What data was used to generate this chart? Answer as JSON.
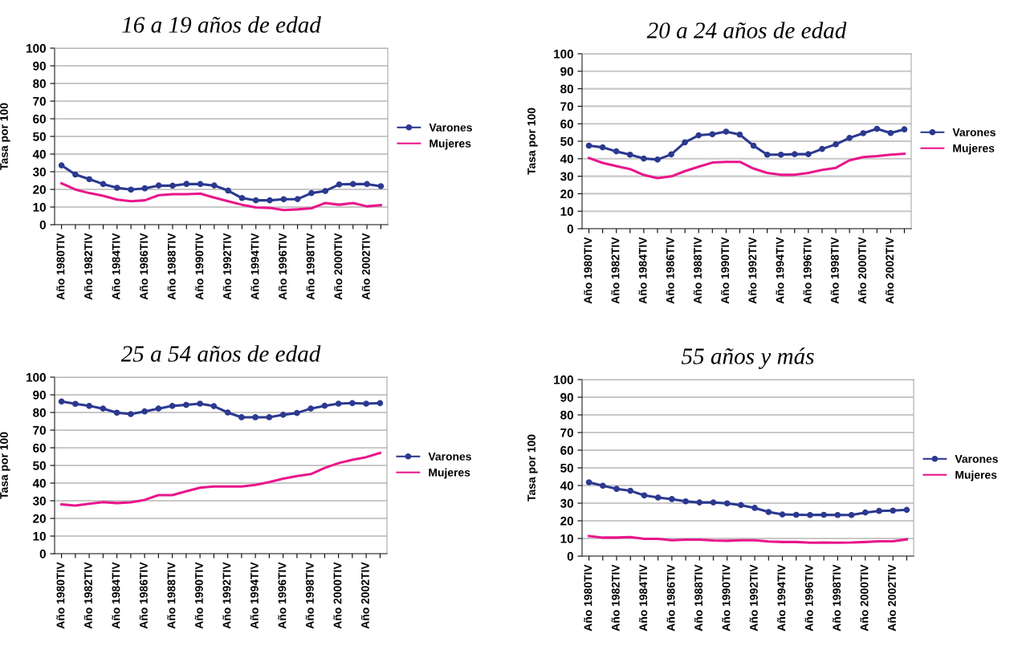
{
  "chart_data": [
    {
      "type": "line",
      "title": "16 a 19 años de edad",
      "ylabel": "Tasa por 100",
      "categories": [
        "Año 1980TIV",
        null,
        "Año 1982TIV",
        null,
        "Año 1984TIV",
        null,
        "Año 1986TIV",
        null,
        "Año 1988TIV",
        null,
        "Año 1990TIV",
        null,
        "Año 1992TIV",
        null,
        "Año 1994TIV",
        null,
        "Año 1996TIV",
        null,
        "Año 1998TIV",
        null,
        "Año 2000TIV",
        null,
        "Año 2002TIV",
        null
      ],
      "series": [
        {
          "name": "Varones",
          "color": "#2b3990",
          "marker": "circle",
          "values": [
            33.6,
            28.4,
            25.8,
            23.0,
            20.9,
            19.9,
            20.6,
            22.2,
            22.1,
            23.1,
            23.0,
            22.2,
            19.3,
            15.1,
            13.8,
            13.8,
            14.4,
            14.5,
            17.9,
            19.1,
            22.8,
            23.0,
            23.0,
            21.8
          ]
        },
        {
          "name": "Mujeres",
          "color": "#e8168c",
          "marker": "none",
          "values": [
            23.4,
            19.9,
            17.9,
            16.4,
            14.2,
            13.3,
            13.8,
            16.7,
            17.3,
            17.3,
            17.6,
            15.3,
            13.3,
            11.3,
            9.8,
            9.5,
            8.3,
            8.7,
            9.3,
            12.3,
            11.3,
            12.3,
            10.4,
            11.1
          ]
        }
      ],
      "ylim": [
        0,
        100
      ],
      "yticks": [
        0,
        10,
        20,
        30,
        40,
        50,
        60,
        70,
        80,
        90,
        100
      ],
      "grid": "y",
      "legend": "right",
      "line_style": "solid"
    },
    {
      "type": "line",
      "title": "20 a 24 años de edad",
      "ylabel": "Tasa por 100",
      "categories": [
        "Año 1980TIV",
        null,
        "Año 1982TIV",
        null,
        "Año 1984TIV",
        null,
        "Año 1986TIV",
        null,
        "Año 1988TIV",
        null,
        "Año 1990TIV",
        null,
        "Año 1992TIV",
        null,
        "Año 1994TIV",
        null,
        "Año 1996TIV",
        null,
        "Año 1998TIV",
        null,
        "Año 2000TIV",
        null,
        "Año 2002TIV",
        null
      ],
      "series": [
        {
          "name": "Varones",
          "color": "#2b3990",
          "marker": "circle",
          "values": [
            47.5,
            46.5,
            44.2,
            42.3,
            40.1,
            39.5,
            42.5,
            49.4,
            53.4,
            54.0,
            55.5,
            53.8,
            47.5,
            42.3,
            42.3,
            42.6,
            42.6,
            45.6,
            48.2,
            51.9,
            54.6,
            57.1,
            54.7,
            56.8
          ]
        },
        {
          "name": "Mujeres",
          "color": "#e8168c",
          "marker": "none",
          "values": [
            40.4,
            37.6,
            35.8,
            34.1,
            30.7,
            28.9,
            29.9,
            32.9,
            35.4,
            37.8,
            38.2,
            38.2,
            34.4,
            31.9,
            30.8,
            30.8,
            31.9,
            33.6,
            34.8,
            39.1,
            40.9,
            41.5,
            42.3,
            42.8
          ]
        }
      ],
      "ylim": [
        0,
        100
      ],
      "yticks": [
        0,
        10,
        20,
        30,
        40,
        50,
        60,
        70,
        80,
        90,
        100
      ],
      "grid": "y",
      "legend": "right",
      "line_style": "solid"
    },
    {
      "type": "line",
      "title": "25 a 54 años de edad",
      "ylabel": "Tasa por 100",
      "categories": [
        "Año 1980TIV",
        null,
        "Año 1982TIV",
        null,
        "Año 1984TIV",
        null,
        "Año 1986TIV",
        null,
        "Año 1988TIV",
        null,
        "Año 1990TIV",
        null,
        "Año 1992TIV",
        null,
        "Año 1994TIV",
        null,
        "Año 1996TIV",
        null,
        "Año 1998TIV",
        null,
        "Año 2000TIV",
        null,
        "Año 2002TIV",
        null
      ],
      "series": [
        {
          "name": "Varones",
          "color": "#2b3990",
          "marker": "circle",
          "values": [
            86.2,
            84.9,
            83.7,
            82.2,
            79.9,
            79.1,
            80.6,
            82.2,
            83.7,
            84.3,
            85.0,
            83.6,
            80.0,
            77.3,
            77.3,
            77.3,
            78.7,
            79.7,
            82.2,
            83.8,
            85.0,
            85.3,
            85.0,
            85.3
          ]
        },
        {
          "name": "Mujeres",
          "color": "#e8168c",
          "marker": "none",
          "values": [
            27.9,
            27.3,
            28.3,
            29.2,
            28.7,
            29.1,
            30.5,
            33.2,
            33.2,
            35.3,
            37.4,
            38.1,
            38.1,
            38.1,
            39.0,
            40.6,
            42.5,
            44.0,
            45.1,
            48.6,
            51.3,
            53.2,
            54.7,
            57.1
          ]
        }
      ],
      "ylim": [
        0,
        100
      ],
      "yticks": [
        0,
        10,
        20,
        30,
        40,
        50,
        60,
        70,
        80,
        90,
        100
      ],
      "grid": "y",
      "legend": "right",
      "line_style": "solid"
    },
    {
      "type": "line",
      "title": "55 años y más",
      "ylabel": "Tasa por 100",
      "categories": [
        "Año 1980TIV",
        null,
        "Año 1982TIV",
        null,
        "Año 1984TIV",
        null,
        "Año 1986TIV",
        null,
        "Año 1988TIV",
        null,
        "Año 1990TIV",
        null,
        "Año 1992TIV",
        null,
        "Año 1994TIV",
        null,
        "Año 1996TIV",
        null,
        "Año 1998TIV",
        null,
        "Año 2000TIV",
        null,
        "Año 2002TIV",
        null
      ],
      "series": [
        {
          "name": "Varones",
          "color": "#2b3990",
          "marker": "circle",
          "values": [
            41.8,
            39.9,
            38.1,
            37.0,
            34.4,
            33.2,
            32.3,
            31.0,
            30.4,
            30.4,
            29.9,
            28.9,
            27.3,
            25.0,
            23.6,
            23.4,
            23.3,
            23.4,
            23.3,
            23.3,
            24.7,
            25.6,
            25.8,
            26.2
          ]
        },
        {
          "name": "Mujeres",
          "color": "#e8168c",
          "marker": "none",
          "values": [
            11.4,
            10.5,
            10.5,
            10.8,
            9.8,
            9.8,
            9.0,
            9.3,
            9.3,
            8.9,
            8.7,
            9.0,
            9.0,
            8.3,
            8.0,
            8.0,
            7.6,
            7.7,
            7.6,
            7.7,
            8.0,
            8.4,
            8.4,
            9.5
          ]
        }
      ],
      "ylim": [
        0,
        100
      ],
      "yticks": [
        0,
        10,
        20,
        30,
        40,
        50,
        60,
        70,
        80,
        90,
        100
      ],
      "grid": "y",
      "legend": "right",
      "line_style": "solid"
    }
  ]
}
